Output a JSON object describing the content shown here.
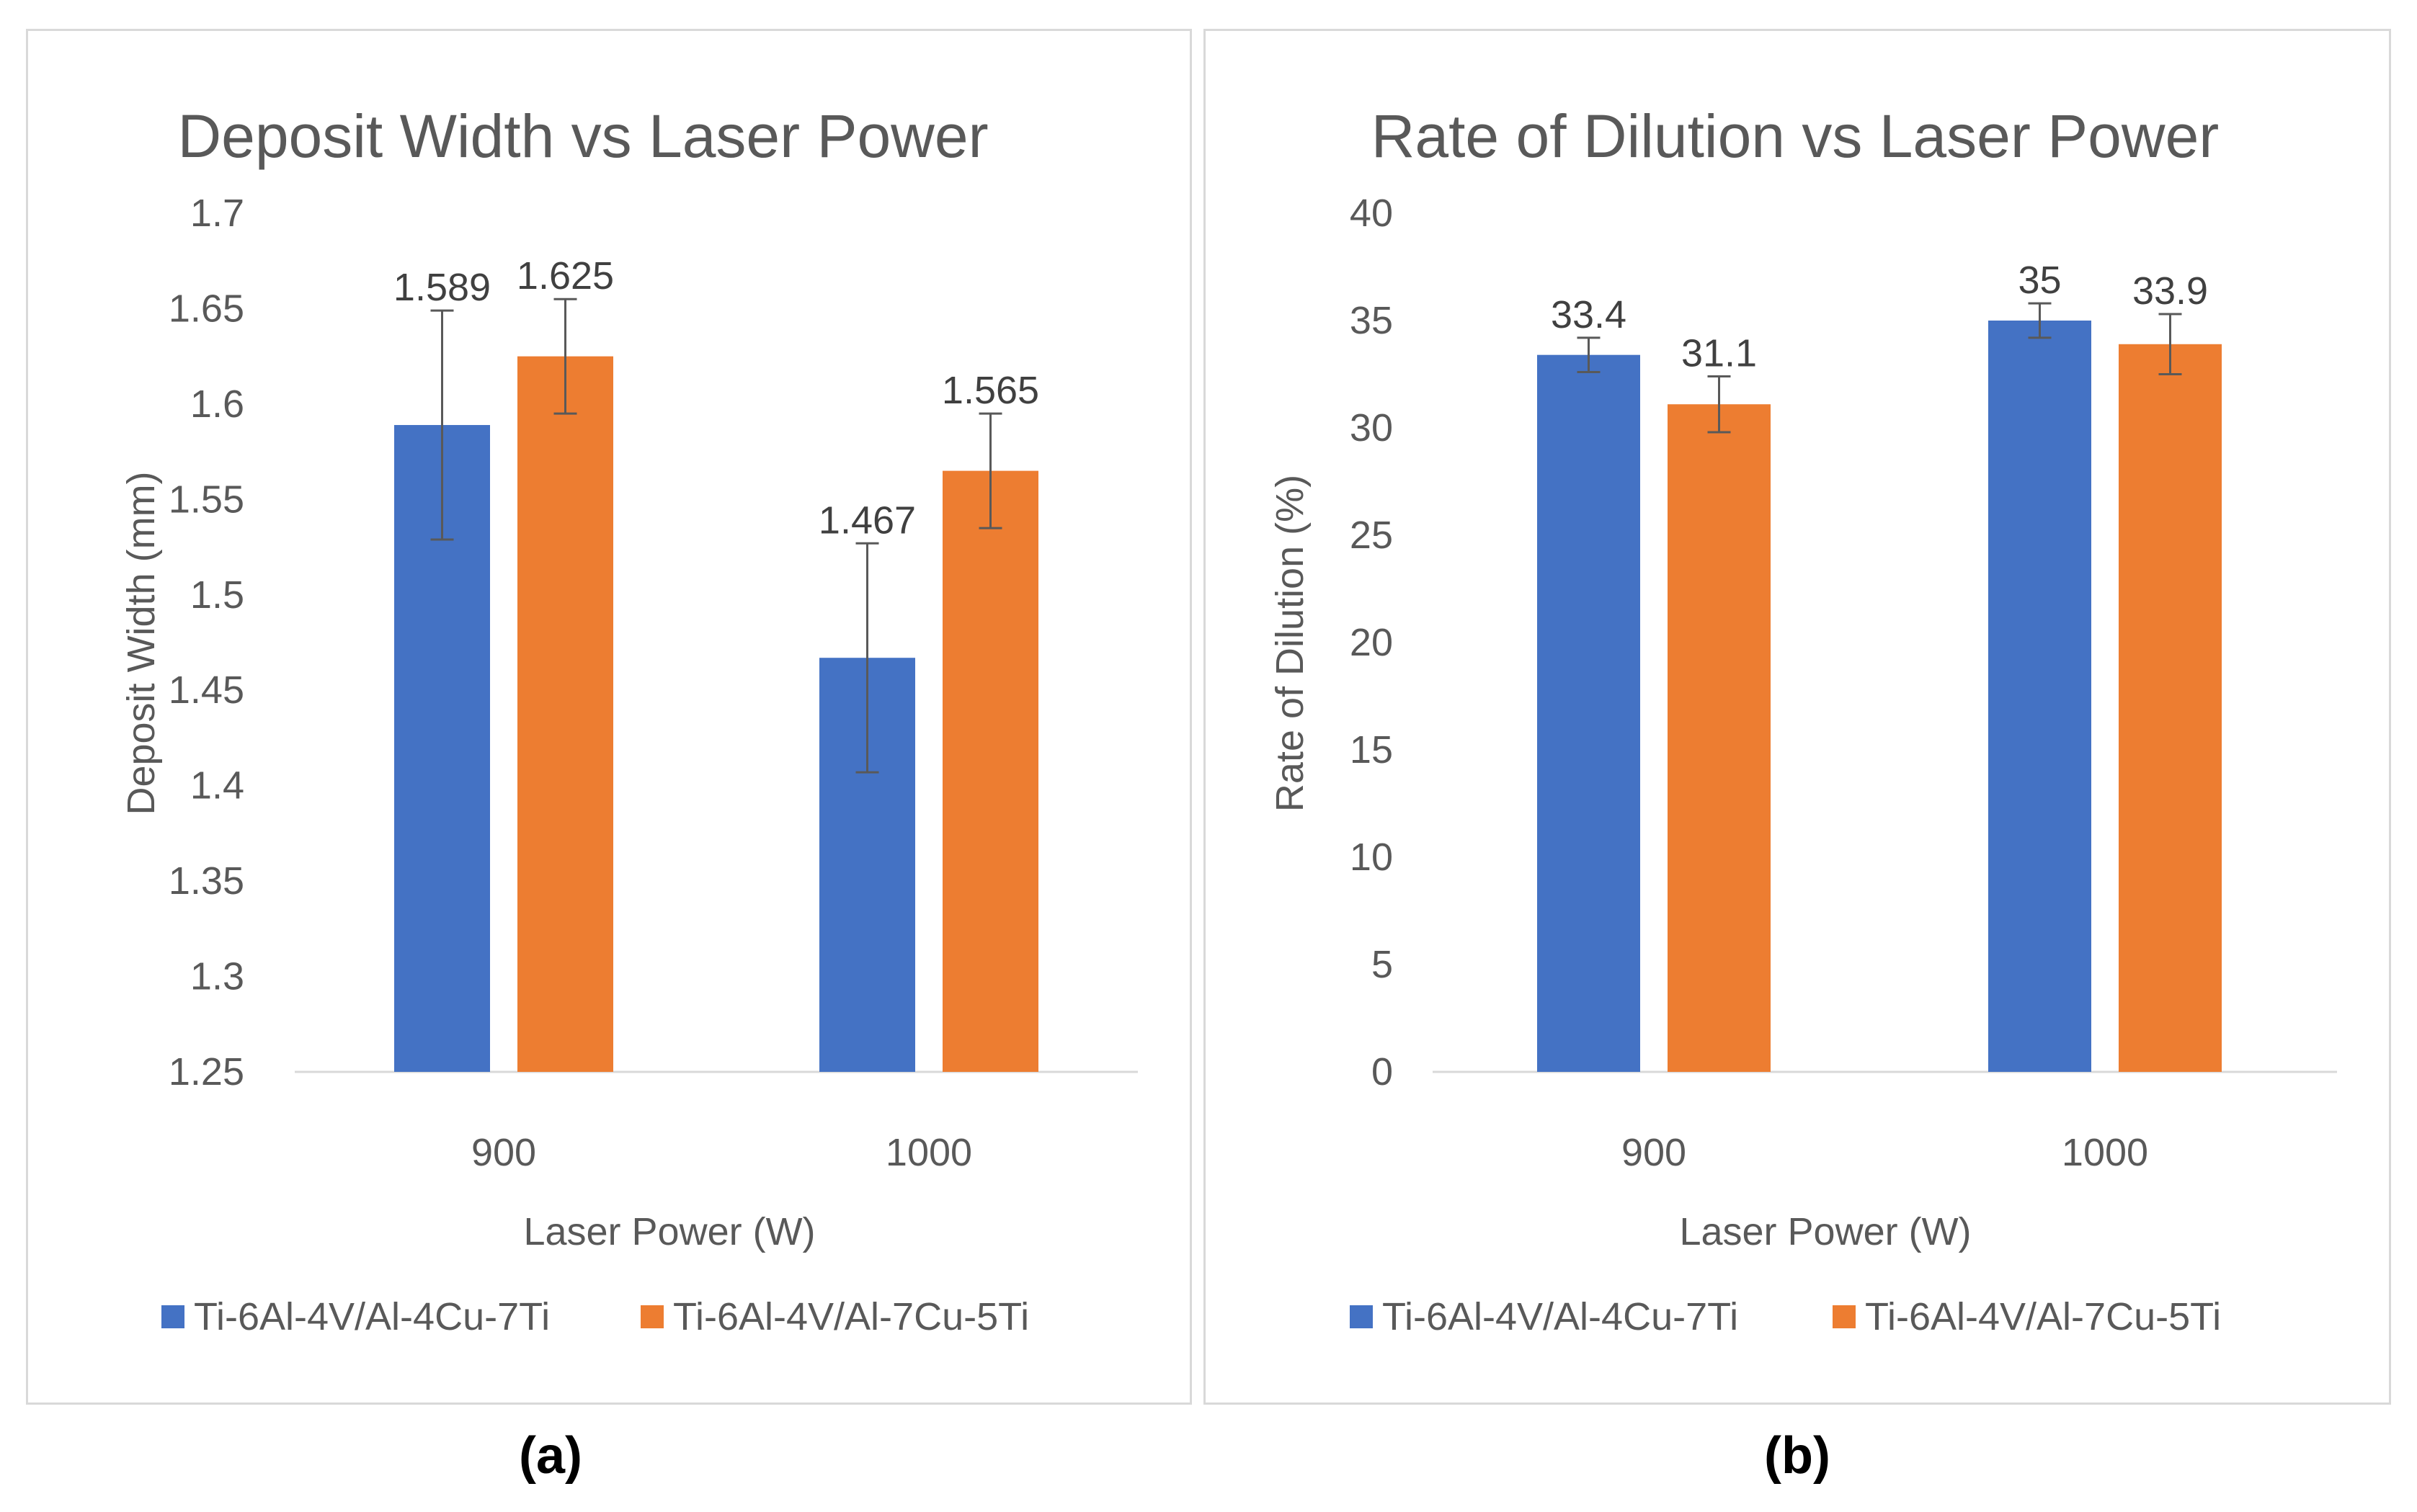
{
  "chart_data": [
    {
      "type": "bar",
      "title": "Deposit Width vs Laser Power",
      "xlabel": "Laser Power  (W)",
      "ylabel": "Deposit Width (mm)",
      "categories": [
        "900",
        "1000"
      ],
      "ylim": [
        1.25,
        1.7
      ],
      "yticks": [
        "1.25",
        "1.3",
        "1.35",
        "1.4",
        "1.45",
        "1.5",
        "1.55",
        "1.6",
        "1.65",
        "1.7"
      ],
      "ytick_values": [
        1.25,
        1.3,
        1.35,
        1.4,
        1.45,
        1.5,
        1.55,
        1.6,
        1.65,
        1.7
      ],
      "series": [
        {
          "name": "Ti-6Al-4V/Al-4Cu-7Ti",
          "color": "#4472c4",
          "values": [
            1.589,
            1.467
          ],
          "labels": [
            "1.589",
            "1.467"
          ],
          "errors": [
            0.06,
            0.06
          ]
        },
        {
          "name": "Ti-6Al-4V/Al-7Cu-5Ti",
          "color": "#ed7d31",
          "values": [
            1.625,
            1.565
          ],
          "labels": [
            "1.625",
            "1.565"
          ],
          "errors": [
            0.03,
            0.03
          ]
        }
      ],
      "caption": "(a)"
    },
    {
      "type": "bar",
      "title": "Rate of Dilution vs Laser Power",
      "xlabel": "Laser Power  (W)",
      "ylabel": "Rate of Dilution (%)",
      "categories": [
        "900",
        "1000"
      ],
      "ylim": [
        0,
        40
      ],
      "yticks": [
        "0",
        "5",
        "10",
        "15",
        "20",
        "25",
        "30",
        "35",
        "40"
      ],
      "ytick_values": [
        0,
        5,
        10,
        15,
        20,
        25,
        30,
        35,
        40
      ],
      "series": [
        {
          "name": "Ti-6Al-4V/Al-4Cu-7Ti",
          "color": "#4472c4",
          "values": [
            33.4,
            35
          ],
          "labels": [
            "33.4",
            "35"
          ],
          "errors": [
            0.8,
            0.8
          ]
        },
        {
          "name": "Ti-6Al-4V/Al-7Cu-5Ti",
          "color": "#ed7d31",
          "values": [
            31.1,
            33.9
          ],
          "labels": [
            "31.1",
            "33.9"
          ],
          "errors": [
            1.3,
            1.4
          ]
        }
      ],
      "caption": "(b)"
    }
  ]
}
